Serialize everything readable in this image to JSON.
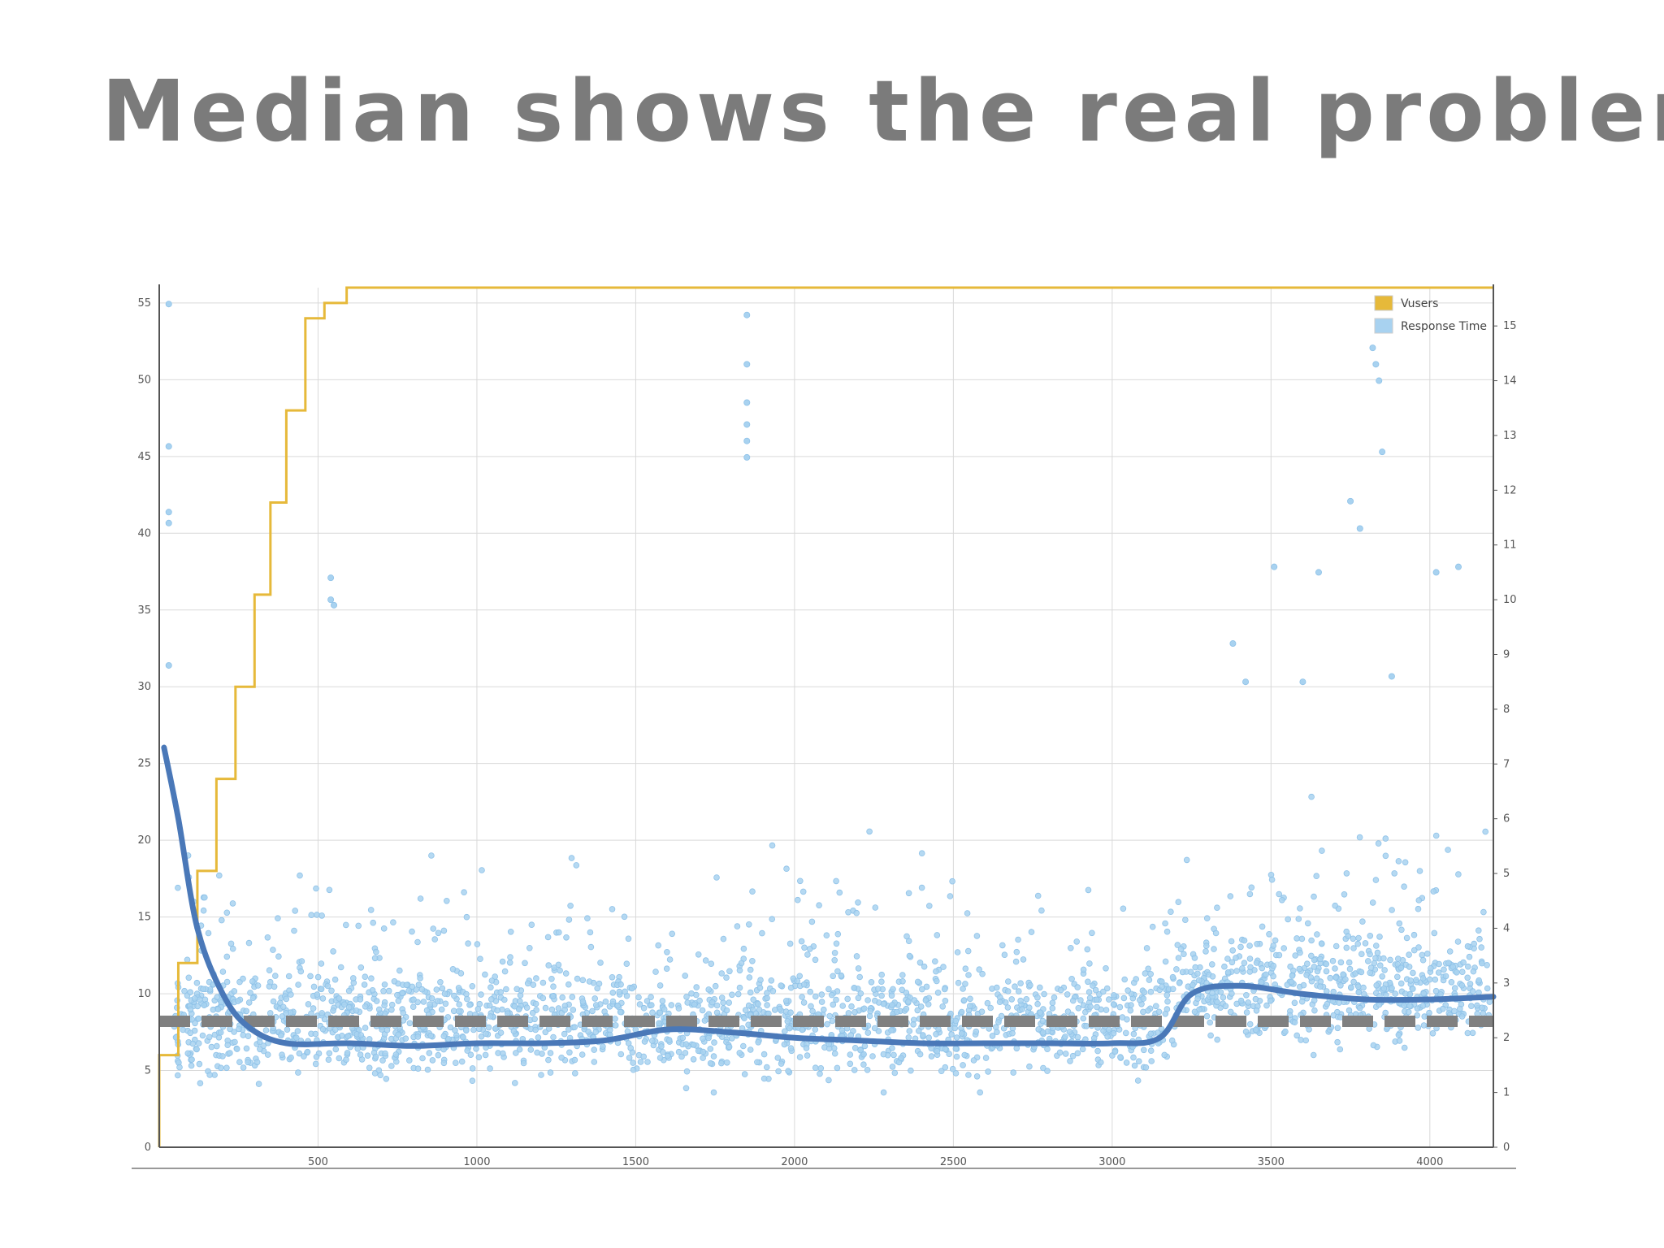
{
  "slide": {
    "title": "Median shows the real problem"
  },
  "colors": {
    "title": "#7b7b7b",
    "vusers": "#e6b93a",
    "response_time": "#a8d2f0",
    "median": "#4a78b8",
    "threshold": "#808080",
    "grid": "#d9d9d9",
    "axis": "#555555"
  },
  "chart_data": {
    "type": "scatter",
    "grid": true,
    "legend_position": "top-right",
    "x_ticks": [
      "500",
      "1000",
      "1500",
      "2000",
      "2500",
      "3000",
      "3500",
      "4000"
    ],
    "y_left_ticks": [
      "0",
      "5",
      "10",
      "15",
      "20",
      "25",
      "30",
      "35",
      "40",
      "45",
      "50",
      "55"
    ],
    "y_right_ticks": [
      "0",
      "1",
      "2",
      "3",
      "4",
      "5",
      "6",
      "7",
      "8",
      "9",
      "10",
      "11",
      "12",
      "13",
      "14",
      "15"
    ],
    "xlim": [
      0,
      4200
    ],
    "ylim_left": [
      0,
      56
    ],
    "ylim_right": [
      0,
      15.7
    ],
    "series": [
      {
        "name": "Vusers",
        "kind": "step",
        "axis": "left",
        "x": [
          0,
          20,
          60,
          120,
          180,
          240,
          300,
          350,
          400,
          460,
          520,
          590,
          4200
        ],
        "y": [
          0,
          6,
          12,
          18,
          24,
          30,
          36,
          42,
          48,
          54,
          55,
          56,
          56
        ]
      },
      {
        "name": "Response Time",
        "kind": "scatter",
        "axis": "right",
        "points_note": "dense cloud of ~2500 samples between 1 and 5 s, mostly 1.5–3.5 s",
        "outliers_x": [
          30,
          30,
          30,
          30,
          30,
          540,
          540,
          550,
          1850,
          1850,
          1850,
          1850,
          1850,
          1850,
          3380,
          3420,
          3510,
          3600,
          3650,
          3750,
          3780,
          3820,
          3830,
          3840,
          3850,
          3880,
          4020,
          4090
        ],
        "outliers_y": [
          15.4,
          12.8,
          11.6,
          11.4,
          8.8,
          10.4,
          10.0,
          9.9,
          15.2,
          14.3,
          13.6,
          13.2,
          12.9,
          12.6,
          9.2,
          8.5,
          10.6,
          8.5,
          10.5,
          11.8,
          11.3,
          14.6,
          14.3,
          14.0,
          12.7,
          8.6,
          10.5,
          10.6
        ]
      },
      {
        "kind": "smooth-line",
        "axis": "right",
        "x": [
          15,
          60,
          120,
          200,
          280,
          400,
          600,
          800,
          1000,
          1200,
          1400,
          1600,
          1800,
          2000,
          2200,
          2400,
          2600,
          2800,
          3000,
          3150,
          3250,
          3400,
          3600,
          3800,
          4000,
          4200
        ],
        "y": [
          7.3,
          6.0,
          4.0,
          2.8,
          2.2,
          1.9,
          1.9,
          1.85,
          1.9,
          1.9,
          1.95,
          2.15,
          2.1,
          2.0,
          1.95,
          1.9,
          1.9,
          1.9,
          1.9,
          2.0,
          2.8,
          2.95,
          2.8,
          2.7,
          2.7,
          2.75
        ]
      },
      {
        "kind": "dashed-threshold",
        "axis": "right",
        "y": 2.3
      }
    ]
  },
  "legend": {
    "items": [
      {
        "label": "Vusers",
        "color": "#e6b93a"
      },
      {
        "label": "Response Time",
        "color": "#a8d2f0"
      }
    ]
  }
}
